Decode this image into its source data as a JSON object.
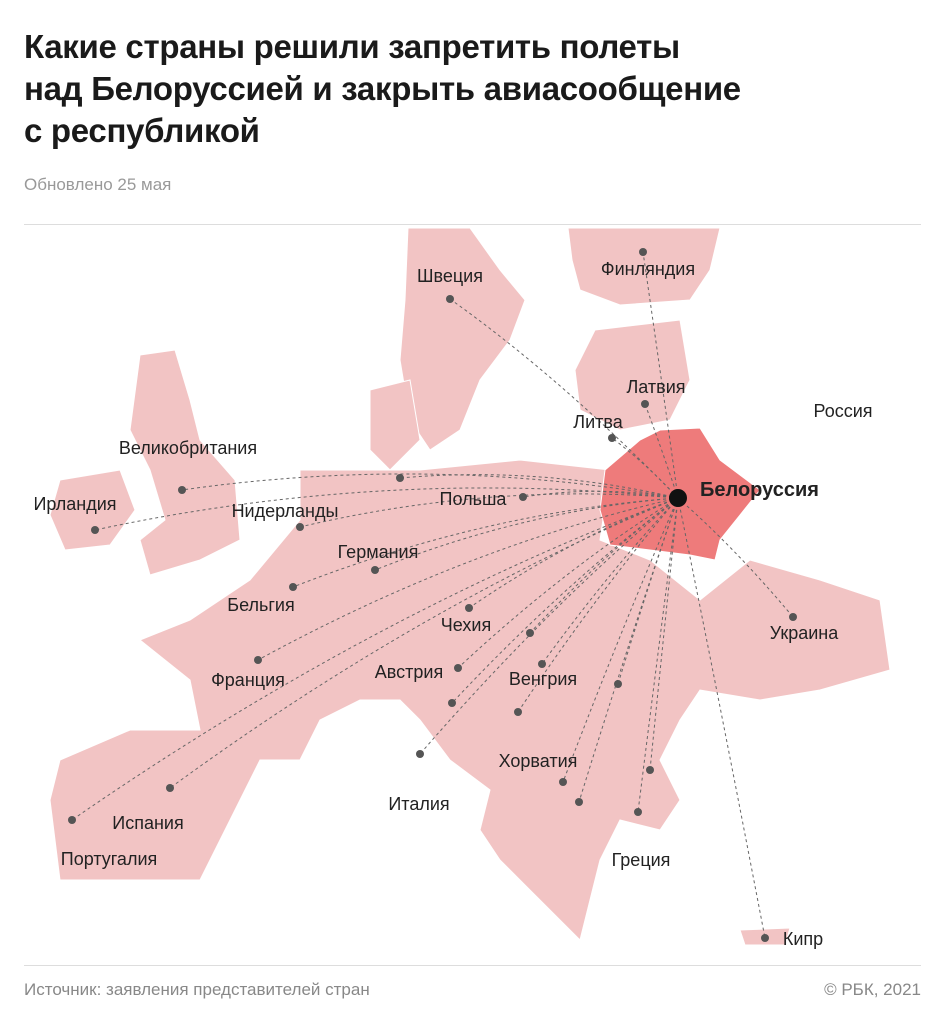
{
  "header": {
    "title": [
      "Какие страны решили запретить полеты",
      "над Белоруссией и закрыть авиасообщение",
      "с республикой"
    ],
    "subtitle": "Обновлено 25 мая"
  },
  "map": {
    "center": {
      "label": "Белоруссия"
    },
    "labels": [
      "Швеция",
      "Финляндия",
      "Латвия",
      "Литва",
      "Россия",
      "Великобритания",
      "Ирландия",
      "Нидерланды",
      "Польша",
      "Германия",
      "Бельгия",
      "Чехия",
      "Украина",
      "Франция",
      "Австрия",
      "Венгрия",
      "Хорватия",
      "Италия",
      "Испания",
      "Португалия",
      "Греция",
      "Кипр"
    ]
  },
  "footer": {
    "source": "Источник: заявления представителей стран",
    "copyright": "© РБК, 2021"
  }
}
